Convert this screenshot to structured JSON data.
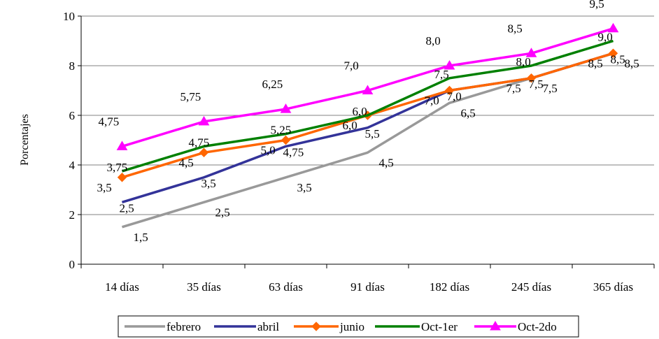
{
  "chart_data": {
    "type": "line",
    "title": "",
    "xlabel": "",
    "ylabel": "Porcentajes",
    "categories": [
      "14 días",
      "35 días",
      "63 días",
      "91 días",
      "182 días",
      "245 días",
      "365 días"
    ],
    "ylim": [
      0,
      10
    ],
    "yticks": [
      "0",
      "2",
      "4",
      "6",
      "8",
      "10"
    ],
    "grid": true,
    "legend_position": "bottom",
    "series": [
      {
        "name": "febrero",
        "color": "#999999",
        "marker": "none",
        "values": [
          1.5,
          2.5,
          3.5,
          4.5,
          6.5,
          7.5,
          8.5
        ],
        "labels": [
          "1,5",
          "2,5",
          "3,5",
          "4,5",
          "6,5",
          "7,5",
          "8,5"
        ]
      },
      {
        "name": "abril",
        "color": "#333399",
        "marker": "none",
        "values": [
          2.5,
          3.5,
          4.75,
          5.5,
          7.0,
          7.5,
          8.5
        ],
        "labels": [
          "2,5",
          "3,5",
          "4,75",
          "5,5",
          "7,0",
          "7,5",
          "8,5"
        ]
      },
      {
        "name": "junio",
        "color": "#ff6600",
        "marker": "diamond",
        "values": [
          3.5,
          4.5,
          5.0,
          6.0,
          7.0,
          7.5,
          8.5
        ],
        "labels": [
          "3,5",
          "4,5",
          "5,0",
          "6,0",
          "7,0",
          "7,5",
          "8,5"
        ]
      },
      {
        "name": "Oct-1er",
        "color": "#008000",
        "marker": "none",
        "values": [
          3.75,
          4.75,
          5.25,
          6.0,
          7.5,
          8.0,
          9.0
        ],
        "labels": [
          "3,75",
          "4,75",
          "5,25",
          "6,0",
          "7,5",
          "8,0",
          "9,0"
        ]
      },
      {
        "name": "Oct-2do",
        "color": "#ff00ff",
        "marker": "triangle",
        "values": [
          4.75,
          5.75,
          6.25,
          7.0,
          8.0,
          8.5,
          9.5
        ],
        "labels": [
          "4,75",
          "5,75",
          "6,25",
          "7,0",
          "8,0",
          "8,5",
          "9,5"
        ]
      }
    ]
  }
}
